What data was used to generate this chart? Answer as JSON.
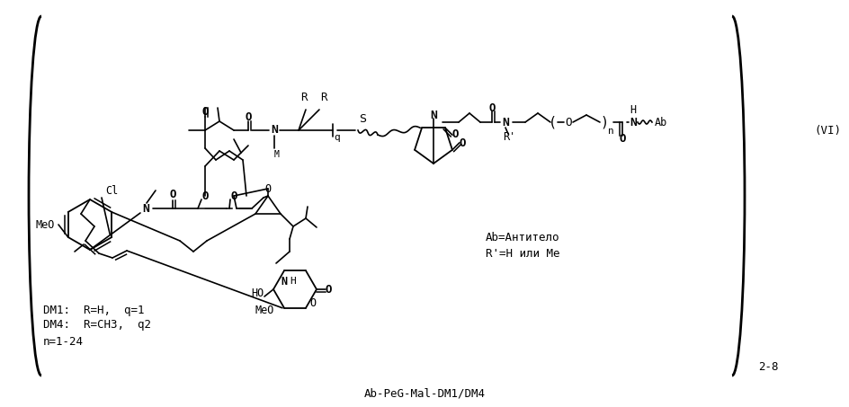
{
  "bg_color": "#ffffff",
  "title": "Ab-PeG-Mal-DM1/DM4",
  "ann1": "Ab=Антитело",
  "ann2": "R'=H или Me",
  "ann3": "DM1:  R=H,  q=1",
  "ann4": "DM4:  R=CH3,  q2",
  "ann5": "n=1-24",
  "label_28": "2-8",
  "label_VI": "(VI)"
}
